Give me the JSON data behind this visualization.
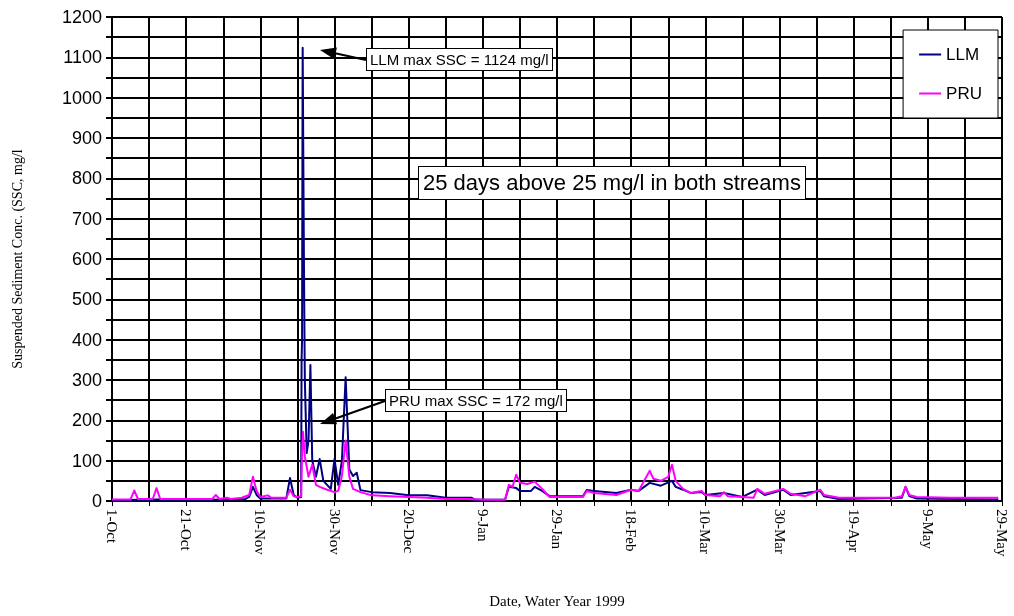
{
  "chart_data": {
    "type": "line",
    "xlabel": "Date, Water Year 1999",
    "ylabel": "Suspended Sediment Conc. (SSC, mg/l",
    "xlim": [
      "1998-10-01",
      "1999-05-29"
    ],
    "xticks": [
      {
        "value": "1998-10-01",
        "label": "1-Oct"
      },
      {
        "value": "1998-10-11",
        "label": null
      },
      {
        "value": "1998-10-21",
        "label": "21-Oct"
      },
      {
        "value": "1998-10-31",
        "label": null
      },
      {
        "value": "1998-11-10",
        "label": "10-Nov"
      },
      {
        "value": "1998-11-20",
        "label": null
      },
      {
        "value": "1998-11-30",
        "label": "30-Nov"
      },
      {
        "value": "1998-12-10",
        "label": null
      },
      {
        "value": "1998-12-20",
        "label": "20-Dec"
      },
      {
        "value": "1998-12-30",
        "label": null
      },
      {
        "value": "1999-01-09",
        "label": "9-Jan"
      },
      {
        "value": "1999-01-19",
        "label": null
      },
      {
        "value": "1999-01-29",
        "label": "29-Jan"
      },
      {
        "value": "1999-02-08",
        "label": null
      },
      {
        "value": "1999-02-18",
        "label": "18-Feb"
      },
      {
        "value": "1999-02-28",
        "label": null
      },
      {
        "value": "1999-03-10",
        "label": "10-Mar"
      },
      {
        "value": "1999-03-20",
        "label": null
      },
      {
        "value": "1999-03-30",
        "label": "30-Mar"
      },
      {
        "value": "1999-04-09",
        "label": null
      },
      {
        "value": "1999-04-19",
        "label": "19-Apr"
      },
      {
        "value": "1999-04-29",
        "label": null
      },
      {
        "value": "1999-05-09",
        "label": "9-May"
      },
      {
        "value": "1999-05-19",
        "label": null
      },
      {
        "value": "1999-05-29",
        "label": "29-May"
      }
    ],
    "ylim": [
      0,
      1200
    ],
    "yticks": [
      0,
      {
        "value": 50,
        "label": null
      },
      100,
      {
        "value": 150,
        "label": null
      },
      200,
      {
        "value": 250,
        "label": null
      },
      300,
      {
        "value": 350,
        "label": null
      },
      400,
      {
        "value": 450,
        "label": null
      },
      500,
      {
        "value": 550,
        "label": null
      },
      600,
      {
        "value": 650,
        "label": null
      },
      700,
      {
        "value": 750,
        "label": null
      },
      800,
      {
        "value": 850,
        "label": null
      },
      900,
      {
        "value": 950,
        "label": null
      },
      1000,
      {
        "value": 1050,
        "label": null
      },
      1100,
      {
        "value": 1150,
        "label": null
      },
      1200
    ],
    "grid": true,
    "legend": "top right",
    "marker": "none",
    "line_style": "solid",
    "annotations": [
      "LLM max SSC = 1124 mg/l",
      "PRU max SSC = 172 mg/l",
      "25 days above 25 mg/l in both streams"
    ],
    "series": [
      {
        "name": "LLM",
        "color": "#000080",
        "x": [
          "1998-10-01",
          "1998-10-13",
          "1998-10-28",
          "1998-11-06",
          "1998-11-07",
          "1998-11-08",
          "1998-11-09",
          "1998-11-10",
          "1998-11-17",
          "1998-11-18",
          "1998-11-19",
          "1998-11-20",
          "1998-11-21T00:00",
          "1998-11-21T03:00",
          "1998-11-21T06:00",
          "1998-11-21T10:00",
          "1998-11-21T18:00",
          "1998-11-22",
          "1998-11-22T12:00",
          "1998-11-23",
          "1998-11-23T12:00",
          "1998-11-24",
          "1998-11-25",
          "1998-11-26",
          "1998-11-27",
          "1998-11-28",
          "1998-11-29",
          "1998-11-30",
          "1998-12-01",
          "1998-12-02",
          "1998-12-03",
          "1998-12-04",
          "1998-12-05",
          "1998-12-06",
          "1998-12-07",
          "1998-12-10",
          "1998-12-15",
          "1998-12-20",
          "1998-12-25",
          "1998-12-30",
          "1999-01-06",
          "1999-01-07",
          "1999-01-15",
          "1999-01-16",
          "1999-01-18",
          "1999-01-19",
          "1999-01-22",
          "1999-01-23",
          "1999-01-25",
          "1999-01-27",
          "1999-02-05",
          "1999-02-06",
          "1999-02-08",
          "1999-02-14",
          "1999-02-18",
          "1999-02-20",
          "1999-02-23",
          "1999-02-26",
          "1999-03-01",
          "1999-03-02",
          "1999-03-04",
          "1999-03-06",
          "1999-03-09",
          "1999-03-10",
          "1999-03-15",
          "1999-03-20",
          "1999-03-24",
          "1999-03-26",
          "1999-03-31",
          "1999-04-02",
          "1999-04-10",
          "1999-04-11",
          "1999-04-15",
          "1999-05-02",
          "1999-05-03",
          "1999-05-04",
          "1999-05-06",
          "1999-05-28"
        ],
        "values": [
          2,
          4,
          3,
          5,
          10,
          35,
          15,
          6,
          6,
          57,
          15,
          8,
          10,
          350,
          400,
          1124,
          600,
          300,
          119,
          150,
          337,
          100,
          60,
          104,
          50,
          40,
          30,
          104,
          40,
          100,
          307,
          78,
          62,
          70,
          27,
          22,
          20,
          14,
          14,
          8,
          8,
          3,
          3,
          35,
          32,
          25,
          25,
          35,
          25,
          12,
          12,
          27,
          25,
          20,
          28,
          25,
          45,
          38,
          50,
          35,
          28,
          20,
          22,
          15,
          20,
          10,
          28,
          15,
          28,
          15,
          25,
          12,
          5,
          8,
          35,
          12,
          6,
          4
        ]
      },
      {
        "name": "PRU",
        "color": "#ff00ff",
        "x": [
          "1998-10-01",
          "1998-10-06",
          "1998-10-07",
          "1998-10-08",
          "1998-10-12",
          "1998-10-13",
          "1998-10-14",
          "1998-10-28",
          "1998-10-29",
          "1998-10-30",
          "1998-11-01",
          "1998-11-02",
          "1998-11-05",
          "1998-11-07",
          "1998-11-08",
          "1998-11-09",
          "1998-11-10",
          "1998-11-12",
          "1998-11-13",
          "1998-11-17",
          "1998-11-18",
          "1998-11-19",
          "1998-11-20",
          "1998-11-21T00:00",
          "1998-11-21T06:00",
          "1998-11-21T12:00",
          "1998-11-22",
          "1998-11-23",
          "1998-11-24",
          "1998-11-25",
          "1998-11-26",
          "1998-11-28",
          "1998-11-30",
          "1998-12-01",
          "1998-12-02",
          "1998-12-03",
          "1998-12-04",
          "1998-12-05",
          "1998-12-07",
          "1998-12-10",
          "1998-12-15",
          "1998-12-20",
          "1998-12-25",
          "1998-12-30",
          "1999-01-05",
          "1999-01-10",
          "1999-01-15",
          "1999-01-16",
          "1999-01-17",
          "1999-01-18",
          "1999-01-19",
          "1999-01-21",
          "1999-01-23",
          "1999-01-25",
          "1999-01-27",
          "1999-02-05",
          "1999-02-06",
          "1999-02-08",
          "1999-02-14",
          "1999-02-18",
          "1999-02-20",
          "1999-02-23",
          "1999-02-24",
          "1999-02-26",
          "1999-02-28",
          "1999-03-01",
          "1999-03-02",
          "1999-03-04",
          "1999-03-06",
          "1999-03-09",
          "1999-03-10",
          "1999-03-14",
          "1999-03-15",
          "1999-03-16",
          "1999-03-20",
          "1999-03-23",
          "1999-03-24",
          "1999-03-26",
          "1999-03-31",
          "1999-04-02",
          "1999-04-06",
          "1999-04-10",
          "1999-04-11",
          "1999-04-14",
          "1999-04-15",
          "1999-04-30",
          "1999-05-02",
          "1999-05-03",
          "1999-05-04",
          "1999-05-06",
          "1999-05-15",
          "1999-05-28"
        ],
        "values": [
          4,
          4,
          26,
          5,
          5,
          32,
          5,
          5,
          15,
          5,
          8,
          5,
          8,
          15,
          60,
          25,
          10,
          14,
          8,
          8,
          28,
          12,
          10,
          12,
          120,
          172,
          110,
          60,
          90,
          40,
          35,
          28,
          22,
          25,
          62,
          150,
          60,
          30,
          22,
          14,
          12,
          10,
          8,
          5,
          5,
          3,
          3,
          40,
          35,
          65,
          45,
          42,
          48,
          30,
          10,
          10,
          25,
          20,
          15,
          28,
          25,
          75,
          55,
          50,
          60,
          90,
          50,
          30,
          20,
          25,
          15,
          12,
          22,
          12,
          10,
          8,
          30,
          18,
          30,
          18,
          12,
          28,
          15,
          10,
          8,
          8,
          12,
          35,
          15,
          10,
          8,
          8
        ]
      }
    ]
  }
}
